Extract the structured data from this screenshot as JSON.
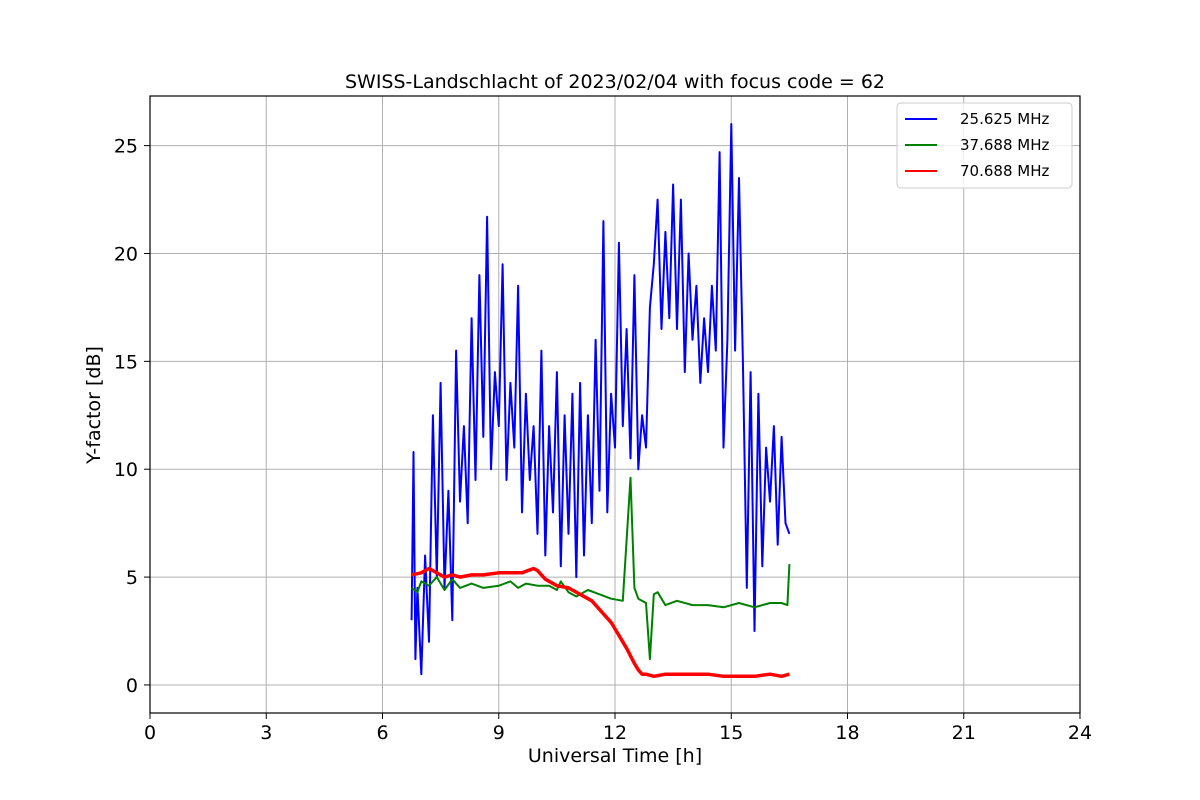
{
  "chart_data": {
    "type": "line",
    "title": "SWISS-Landschlacht of 2023/02/04 with focus code = 62",
    "xlabel": "Universal Time [h]",
    "ylabel": "Y-factor [dB]",
    "xlim": [
      0,
      24
    ],
    "ylim": [
      -1.3,
      27.3
    ],
    "xticks": [
      0,
      3,
      6,
      9,
      12,
      15,
      18,
      21,
      24
    ],
    "yticks": [
      0,
      5,
      10,
      15,
      20,
      25
    ],
    "grid": true,
    "legend_position": "top-right",
    "series": [
      {
        "name": "25.625 MHz",
        "color": "#0000ff",
        "x": [
          6.75,
          6.8,
          6.85,
          6.9,
          7.0,
          7.1,
          7.2,
          7.3,
          7.4,
          7.5,
          7.6,
          7.7,
          7.8,
          7.9,
          8.0,
          8.1,
          8.2,
          8.3,
          8.4,
          8.5,
          8.6,
          8.7,
          8.8,
          8.9,
          9.0,
          9.1,
          9.2,
          9.3,
          9.4,
          9.5,
          9.6,
          9.7,
          9.8,
          9.9,
          10.0,
          10.1,
          10.2,
          10.3,
          10.4,
          10.5,
          10.6,
          10.7,
          10.8,
          10.9,
          11.0,
          11.1,
          11.2,
          11.3,
          11.4,
          11.5,
          11.6,
          11.7,
          11.8,
          11.9,
          12.0,
          12.1,
          12.2,
          12.3,
          12.4,
          12.5,
          12.6,
          12.7,
          12.8,
          12.9,
          13.0,
          13.1,
          13.2,
          13.3,
          13.4,
          13.5,
          13.6,
          13.7,
          13.8,
          13.9,
          14.0,
          14.1,
          14.2,
          14.3,
          14.4,
          14.5,
          14.6,
          14.7,
          14.8,
          14.9,
          15.0,
          15.1,
          15.2,
          15.3,
          15.4,
          15.5,
          15.6,
          15.7,
          15.8,
          15.9,
          16.0,
          16.1,
          16.2,
          16.3,
          16.4,
          16.5
        ],
        "y": [
          3.0,
          10.8,
          1.2,
          4.5,
          0.5,
          6.0,
          2.0,
          12.5,
          5.0,
          14.0,
          4.5,
          9.0,
          3.0,
          15.5,
          8.5,
          12.0,
          7.5,
          17.0,
          9.5,
          19.0,
          11.5,
          21.7,
          10.0,
          14.5,
          12.0,
          19.5,
          9.5,
          14.0,
          11.0,
          18.5,
          8.0,
          13.5,
          9.5,
          12.0,
          7.0,
          15.5,
          6.0,
          12.0,
          8.0,
          14.5,
          5.5,
          12.5,
          7.0,
          13.5,
          5.0,
          14.0,
          6.0,
          12.5,
          7.5,
          16.0,
          9.0,
          21.5,
          8.0,
          13.5,
          11.0,
          20.5,
          12.0,
          16.5,
          10.5,
          19.0,
          10.0,
          12.5,
          11.0,
          17.5,
          19.5,
          22.5,
          16.5,
          21.0,
          17.0,
          23.2,
          16.5,
          22.5,
          14.5,
          20.0,
          16.0,
          18.5,
          14.0,
          17.0,
          14.5,
          18.5,
          15.5,
          24.7,
          11.0,
          16.0,
          26.0,
          15.5,
          23.5,
          15.0,
          4.5,
          14.5,
          2.5,
          13.5,
          5.5,
          11.0,
          8.5,
          12.0,
          6.5,
          11.5,
          7.5,
          7.0
        ]
      },
      {
        "name": "37.688 MHz",
        "color": "#008000",
        "x": [
          6.75,
          6.9,
          7.0,
          7.2,
          7.4,
          7.6,
          7.8,
          8.0,
          8.3,
          8.6,
          9.0,
          9.3,
          9.5,
          9.7,
          10.0,
          10.3,
          10.5,
          10.6,
          10.8,
          11.0,
          11.3,
          11.6,
          11.9,
          12.2,
          12.4,
          12.5,
          12.6,
          12.8,
          12.9,
          13.0,
          13.1,
          13.3,
          13.6,
          14.0,
          14.4,
          14.8,
          15.2,
          15.6,
          16.0,
          16.3,
          16.45,
          16.5
        ],
        "y": [
          4.5,
          4.3,
          4.8,
          4.6,
          5.0,
          4.4,
          4.9,
          4.5,
          4.7,
          4.5,
          4.6,
          4.8,
          4.5,
          4.7,
          4.6,
          4.6,
          4.4,
          4.8,
          4.3,
          4.1,
          4.4,
          4.2,
          4.0,
          3.9,
          9.6,
          4.5,
          4.0,
          3.8,
          1.2,
          4.2,
          4.3,
          3.7,
          3.9,
          3.7,
          3.7,
          3.6,
          3.8,
          3.6,
          3.8,
          3.8,
          3.7,
          5.6
        ]
      },
      {
        "name": "70.688 MHz",
        "color": "#ff0000",
        "x": [
          6.75,
          7.0,
          7.2,
          7.4,
          7.6,
          7.8,
          8.0,
          8.3,
          8.6,
          9.0,
          9.3,
          9.6,
          9.9,
          10.0,
          10.2,
          10.5,
          10.8,
          11.1,
          11.4,
          11.7,
          11.9,
          12.1,
          12.3,
          12.5,
          12.6,
          12.7,
          12.8,
          13.0,
          13.3,
          13.6,
          14.0,
          14.4,
          14.8,
          15.2,
          15.6,
          16.0,
          16.3,
          16.5
        ],
        "y": [
          5.1,
          5.2,
          5.4,
          5.2,
          5.0,
          5.1,
          5.0,
          5.1,
          5.1,
          5.2,
          5.2,
          5.2,
          5.4,
          5.3,
          4.9,
          4.6,
          4.5,
          4.2,
          3.9,
          3.3,
          2.9,
          2.3,
          1.7,
          1.0,
          0.7,
          0.5,
          0.5,
          0.4,
          0.5,
          0.5,
          0.5,
          0.5,
          0.4,
          0.4,
          0.4,
          0.5,
          0.4,
          0.5
        ]
      }
    ]
  }
}
